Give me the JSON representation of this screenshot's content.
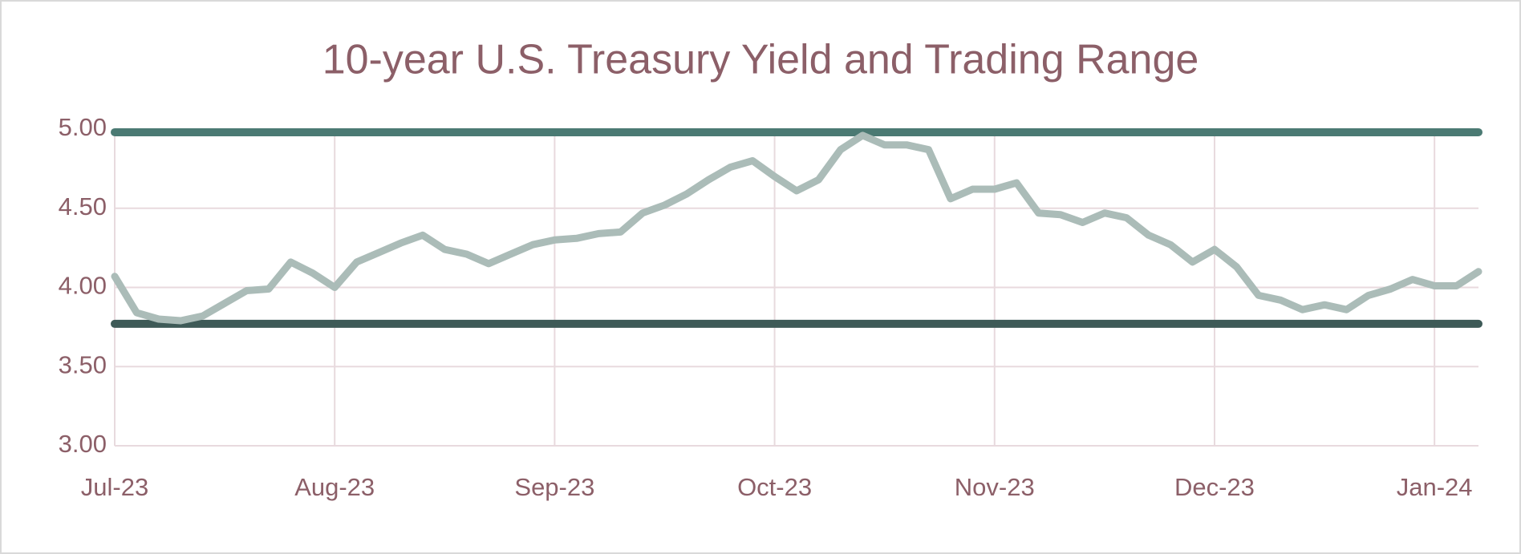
{
  "chart_data": {
    "type": "line",
    "title": "10-year U.S. Treasury Yield and Trading Range",
    "categories": [
      "Jul-23",
      null,
      null,
      null,
      null,
      null,
      null,
      null,
      null,
      null,
      "Aug-23",
      null,
      null,
      null,
      null,
      null,
      null,
      null,
      null,
      null,
      "Sep-23",
      null,
      null,
      null,
      null,
      null,
      null,
      null,
      null,
      null,
      "Oct-23",
      null,
      null,
      null,
      null,
      null,
      null,
      null,
      null,
      null,
      "Nov-23",
      null,
      null,
      null,
      null,
      null,
      null,
      null,
      null,
      null,
      "Dec-23",
      null,
      null,
      null,
      null,
      null,
      null,
      null,
      null,
      null,
      "Jan-24",
      null,
      null
    ],
    "series": [
      {
        "color": "#abbcb8",
        "values": [
          4.07,
          3.84,
          3.8,
          3.79,
          3.82,
          3.9,
          3.98,
          3.99,
          4.16,
          4.09,
          4.0,
          4.16,
          4.22,
          4.28,
          4.33,
          4.24,
          4.21,
          4.15,
          4.21,
          4.27,
          4.3,
          4.31,
          4.34,
          4.35,
          4.47,
          4.52,
          4.59,
          4.68,
          4.76,
          4.8,
          4.7,
          4.61,
          4.68,
          4.87,
          4.96,
          4.9,
          4.9,
          4.87,
          4.56,
          4.62,
          4.62,
          4.66,
          4.47,
          4.46,
          4.41,
          4.47,
          4.44,
          4.33,
          4.27,
          4.16,
          4.24,
          4.13,
          3.95,
          3.92,
          3.86,
          3.89,
          3.86,
          3.95,
          3.99,
          4.05,
          4.01,
          4.01,
          4.1
        ]
      }
    ],
    "reference_lines": [
      {
        "value": 4.98,
        "color": "#4b7a73"
      },
      {
        "value": 3.77,
        "color": "#3e5a57"
      }
    ],
    "ylim": [
      3,
      5
    ],
    "yticks": [
      {
        "value": 3,
        "label": "3.00"
      },
      {
        "value": 3.5,
        "label": "3.50"
      },
      {
        "value": 4,
        "label": "4.00"
      },
      {
        "value": 4.5,
        "label": "4.50"
      },
      {
        "value": 5,
        "label": "5.00"
      }
    ],
    "grid": true
  }
}
